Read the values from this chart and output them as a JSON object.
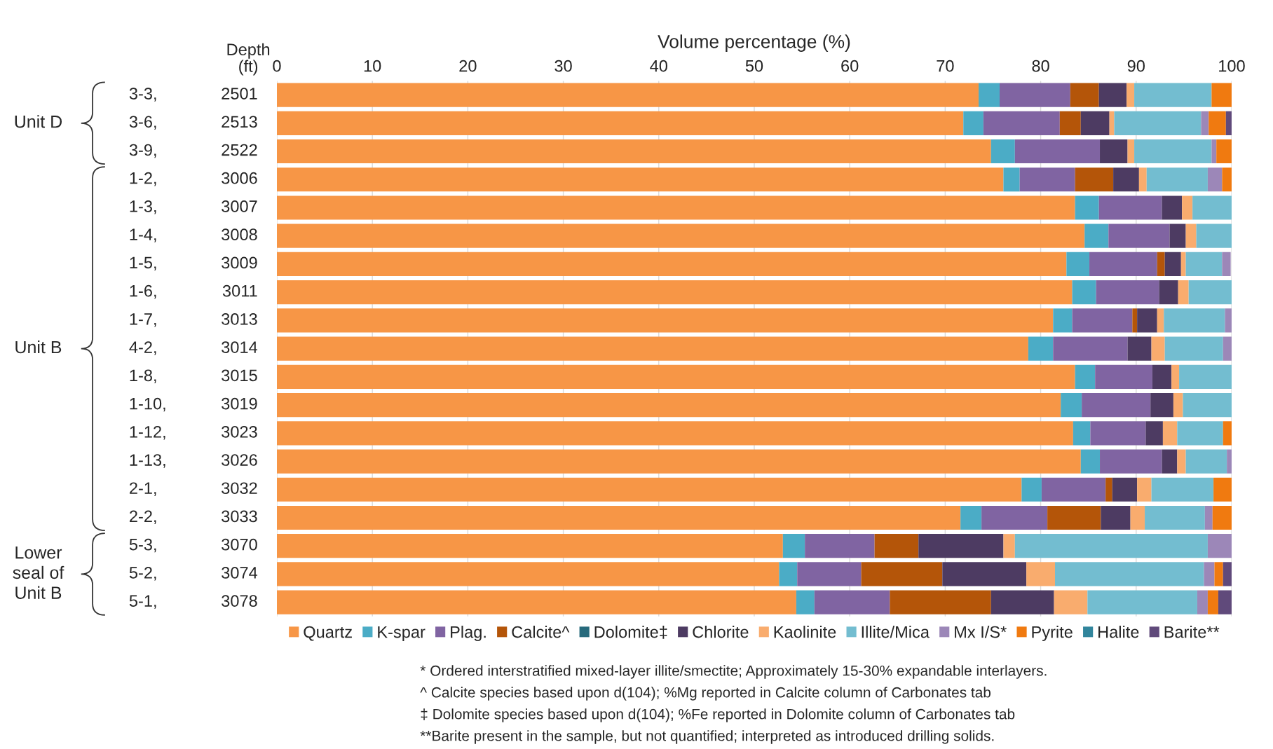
{
  "chart_data": {
    "type": "bar",
    "orientation": "horizontal",
    "stacked": true,
    "xlabel": "Volume percentage (%)",
    "ylabel": "Depth\n(ft)",
    "categories": [
      "3-3, 2501",
      "3-6, 2513",
      "3-9, 2522",
      "1-2, 3006",
      "1-3, 3007",
      "1-4, 3008",
      "1-5, 3009",
      "1-6, 3011",
      "1-7, 3013",
      "4-2, 3014",
      "1-8, 3015",
      "1-10, 3019",
      "1-12, 3023",
      "1-13, 3026",
      "2-1, 3032",
      "2-2, 3033",
      "5-3, 3070",
      "5-2, 3074",
      "5-1, 3078"
    ],
    "series": [
      {
        "name": "Quartz",
        "color": "#f79646",
        "values": [
          73.5,
          71.9,
          74.8,
          76.1,
          83.6,
          84.6,
          82.7,
          83.3,
          81.3,
          78.7,
          83.6,
          82.1,
          83.4,
          84.2,
          78.0,
          71.6,
          53.0,
          52.6,
          54.4
        ]
      },
      {
        "name": "K-spar",
        "color": "#4bacc6",
        "values": [
          2.2,
          2.1,
          2.5,
          1.7,
          2.5,
          2.5,
          2.4,
          2.5,
          2.0,
          2.6,
          2.1,
          2.2,
          1.8,
          2.0,
          2.1,
          2.2,
          2.3,
          1.9,
          1.9
        ]
      },
      {
        "name": "Plag.",
        "color": "#8064a2",
        "values": [
          7.4,
          8.0,
          8.9,
          5.8,
          6.6,
          6.4,
          7.1,
          6.6,
          6.3,
          7.8,
          6.0,
          7.2,
          5.8,
          6.5,
          6.7,
          6.9,
          7.3,
          6.7,
          7.9
        ]
      },
      {
        "name": "Calcite^",
        "color": "#b45509",
        "values": [
          3.0,
          2.2,
          0,
          4.0,
          0,
          0,
          0.8,
          0,
          0.5,
          0,
          0,
          0,
          0,
          0,
          0.7,
          5.6,
          4.6,
          8.5,
          10.6
        ]
      },
      {
        "name": "Dolomite‡",
        "color": "#276a7c",
        "values": [
          0,
          0,
          0,
          0,
          0,
          0,
          0,
          0,
          0,
          0,
          0,
          0,
          0,
          0,
          0,
          0,
          0,
          0,
          0
        ]
      },
      {
        "name": "Chlorite",
        "color": "#4d3b62",
        "values": [
          2.9,
          3.0,
          2.9,
          2.7,
          2.1,
          1.7,
          1.7,
          2.0,
          2.1,
          2.5,
          2.0,
          2.4,
          1.8,
          1.6,
          2.6,
          3.1,
          8.9,
          8.8,
          6.6
        ]
      },
      {
        "name": "Kaolinite",
        "color": "#f9ac6e",
        "values": [
          0.8,
          0.5,
          0.7,
          0.8,
          1.1,
          1.1,
          0.5,
          1.1,
          0.7,
          1.4,
          0.8,
          1.0,
          1.5,
          0.9,
          1.5,
          1.5,
          1.2,
          3.0,
          3.5
        ]
      },
      {
        "name": "Illite/Mica",
        "color": "#73bdd0",
        "values": [
          8.1,
          9.1,
          8.1,
          6.4,
          4.1,
          3.7,
          3.8,
          4.5,
          6.4,
          6.1,
          5.5,
          5.1,
          4.8,
          4.3,
          6.5,
          6.3,
          20.2,
          15.6,
          11.5
        ]
      },
      {
        "name": "Mx I/S*",
        "color": "#9c87b8",
        "values": [
          0,
          0.8,
          0.5,
          1.5,
          0,
          0,
          0.9,
          0,
          0.7,
          0.9,
          0,
          0,
          0,
          0.5,
          0,
          0.8,
          2.5,
          1.1,
          1.1
        ]
      },
      {
        "name": "Pyrite",
        "color": "#f07a10",
        "values": [
          2.1,
          1.8,
          1.6,
          1.0,
          0,
          0,
          0,
          0,
          0,
          0,
          0,
          0,
          0.9,
          0,
          1.9,
          2.0,
          0,
          0.9,
          1.1
        ]
      },
      {
        "name": "Halite",
        "color": "#31859c",
        "values": [
          0,
          0,
          0,
          0,
          0,
          0,
          0,
          0,
          0,
          0,
          0,
          0,
          0,
          0,
          0,
          0,
          0,
          0,
          0
        ]
      },
      {
        "name": "Barite**",
        "color": "#604a7b",
        "values": [
          0,
          0.6,
          0,
          0,
          0,
          0,
          0,
          0,
          0,
          0,
          0,
          0,
          0,
          0,
          0,
          0,
          0,
          0.9,
          1.4
        ]
      }
    ],
    "xlim": [
      0,
      100
    ],
    "xticks": [
      0,
      10,
      20,
      30,
      40,
      50,
      60,
      70,
      80,
      90,
      100
    ],
    "grid": "x",
    "legend": "bottom",
    "annotations": [
      "Unit D",
      "Unit B",
      "Lower\nseal of\nUnit B",
      "* Ordered interstratified mixed-layer illite/smectite; Approximately 15-30% expandable interlayers.",
      "^ Calcite species based upon d(104); %Mg reported in Calcite column of Carbonates tab",
      "‡ Dolomite species based upon d(104); %Fe reported in Dolomite column of Carbonates tab",
      "**Barite present in the sample, but not quantified; interpreted as introduced drilling solids."
    ]
  }
}
